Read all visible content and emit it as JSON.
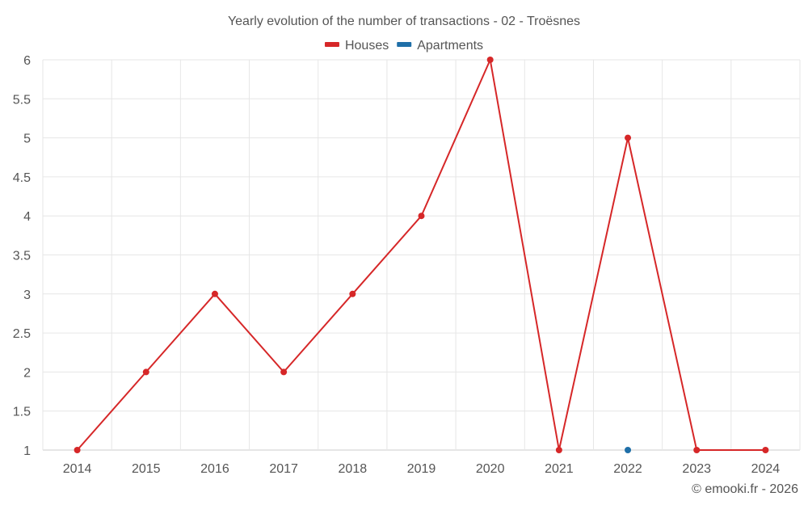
{
  "chart_data": {
    "type": "line",
    "title": "Yearly evolution of the number of transactions - 02 - Troësnes",
    "categories": [
      "2014",
      "2015",
      "2016",
      "2017",
      "2018",
      "2019",
      "2020",
      "2021",
      "2022",
      "2023",
      "2024"
    ],
    "series": [
      {
        "name": "Houses",
        "color": "#d62728",
        "values": [
          1,
          2,
          3,
          2,
          3,
          4,
          6,
          1,
          5,
          1,
          1
        ],
        "line": true
      },
      {
        "name": "Apartments",
        "color": "#1f6fa8",
        "values": [
          null,
          null,
          null,
          null,
          null,
          null,
          null,
          null,
          1,
          null,
          null
        ],
        "line": false
      }
    ],
    "ylim": [
      1,
      6
    ],
    "yticks": [
      "1",
      "1.5",
      "2",
      "2.5",
      "3",
      "3.5",
      "4",
      "4.5",
      "5",
      "5.5",
      "6"
    ],
    "xlabel": "",
    "ylabel": "",
    "grid": true,
    "legend_position": "top-center"
  },
  "credit": "© emooki.fr - 2026"
}
